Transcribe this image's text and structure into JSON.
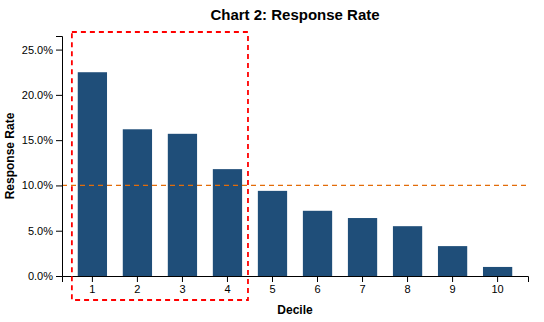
{
  "chart_data": {
    "type": "bar",
    "title": "Chart 2: Response Rate",
    "x_label": "Decile",
    "y_label": "Response Rate",
    "categories": [
      "1",
      "2",
      "3",
      "4",
      "5",
      "6",
      "7",
      "8",
      "9",
      "10"
    ],
    "values": [
      0.225,
      0.162,
      0.157,
      0.118,
      0.094,
      0.072,
      0.064,
      0.055,
      0.033,
      0.01
    ],
    "color": "#1F4E79",
    "ylim": [
      0,
      0.265
    ],
    "yticks": [
      {
        "value": 0.0,
        "label": "0.0%"
      },
      {
        "value": 0.05,
        "label": "5.0%"
      },
      {
        "value": 0.1,
        "label": "10.0%"
      },
      {
        "value": 0.15,
        "label": "15.0%"
      },
      {
        "value": 0.2,
        "label": "20.0%"
      },
      {
        "value": 0.25,
        "label": "25.0%"
      }
    ],
    "grid": false,
    "reference_line": {
      "value": 0.1,
      "color": "#E36C09",
      "line_style": "dashed"
    },
    "highlight": {
      "categories": [
        "1",
        "2",
        "3",
        "4"
      ],
      "color": "red",
      "line_style": "dashed"
    }
  }
}
